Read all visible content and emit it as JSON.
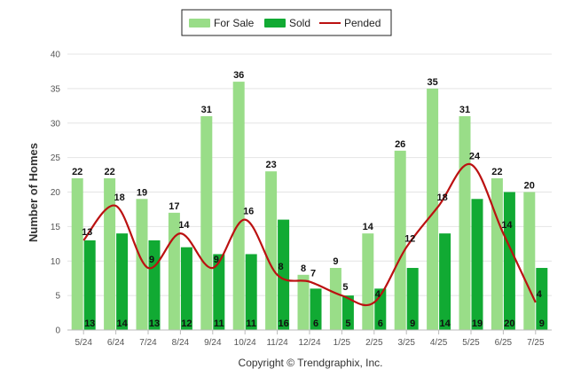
{
  "colors": {
    "for_sale": "#99dd88",
    "sold": "#11aa33",
    "pended": "#bb1111",
    "grid": "#e4e4e4"
  },
  "footer": "Copyright © Trendgraphix, Inc.",
  "chart_data": {
    "type": "bar",
    "ylabel": "Number of Homes",
    "xlabel": "",
    "ylim": [
      0,
      40
    ],
    "yticks": [
      0,
      5,
      10,
      15,
      20,
      25,
      30,
      35,
      40
    ],
    "grid": true,
    "legend_position": "top-center",
    "categories": [
      "5/24",
      "6/24",
      "7/24",
      "8/24",
      "9/24",
      "10/24",
      "11/24",
      "12/24",
      "1/25",
      "2/25",
      "3/25",
      "4/25",
      "5/25",
      "6/25",
      "7/25"
    ],
    "series": [
      {
        "name": "For Sale",
        "type": "bar",
        "values": [
          22,
          22,
          19,
          17,
          31,
          36,
          23,
          8,
          9,
          14,
          26,
          35,
          31,
          22,
          20
        ]
      },
      {
        "name": "Sold",
        "type": "bar",
        "values": [
          13,
          14,
          13,
          12,
          11,
          11,
          16,
          6,
          5,
          6,
          9,
          14,
          19,
          20,
          9
        ]
      },
      {
        "name": "Pended",
        "type": "line",
        "smooth": true,
        "values": [
          13,
          18,
          9,
          14,
          9,
          16,
          8,
          7,
          5,
          4,
          12,
          18,
          24,
          14,
          4
        ]
      }
    ]
  }
}
